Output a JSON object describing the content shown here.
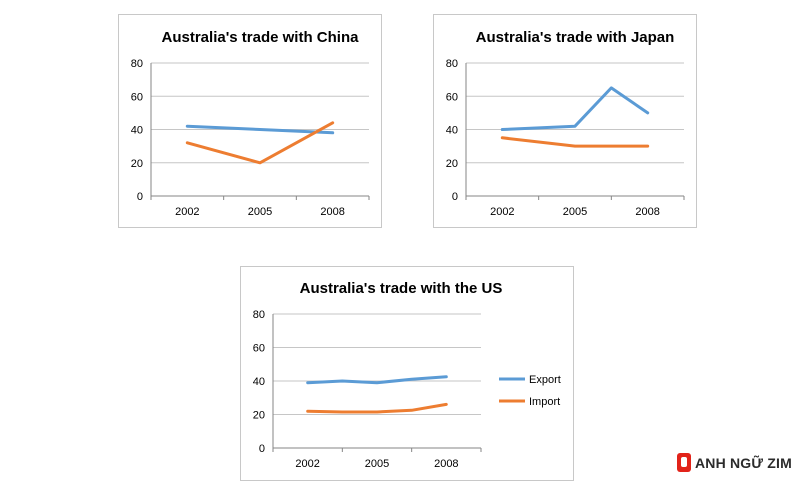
{
  "chart_data": [
    {
      "id": "china",
      "type": "line",
      "title": "Australia's trade with China",
      "categories": [
        "2002",
        "2005",
        "2008"
      ],
      "x": [
        2002,
        2005,
        2008
      ],
      "ylim": [
        0,
        80
      ],
      "yticks": [
        0,
        20,
        40,
        60,
        80
      ],
      "grid": true,
      "legend": null,
      "series": [
        {
          "key": "export",
          "color": "#5b9bd5",
          "points": [
            [
              2002,
              42
            ],
            [
              2005,
              40
            ],
            [
              2008,
              38
            ]
          ]
        },
        {
          "key": "import",
          "color": "#ed7d31",
          "points": [
            [
              2002,
              32
            ],
            [
              2005,
              20
            ],
            [
              2008,
              44
            ]
          ]
        }
      ]
    },
    {
      "id": "japan",
      "type": "line",
      "title": "Australia's trade with Japan",
      "categories": [
        "2002",
        "2005",
        "2008"
      ],
      "x": [
        2002,
        2005,
        2008
      ],
      "ylim": [
        0,
        80
      ],
      "yticks": [
        0,
        20,
        40,
        60,
        80
      ],
      "grid": true,
      "legend": null,
      "series": [
        {
          "key": "export",
          "color": "#5b9bd5",
          "points": [
            [
              2002,
              40
            ],
            [
              2005,
              42
            ],
            [
              2006.5,
              65
            ],
            [
              2008,
              50
            ]
          ]
        },
        {
          "key": "import",
          "color": "#ed7d31",
          "points": [
            [
              2002,
              35
            ],
            [
              2005,
              30
            ],
            [
              2008,
              30
            ]
          ]
        }
      ]
    },
    {
      "id": "us",
      "type": "line",
      "title": "Australia's trade with the US",
      "categories": [
        "2002",
        "2005",
        "2008"
      ],
      "x": [
        2002,
        2005,
        2008
      ],
      "ylim": [
        0,
        80
      ],
      "yticks": [
        0,
        20,
        40,
        60,
        80
      ],
      "grid": true,
      "legend": "right",
      "series": [
        {
          "name": "Export",
          "color": "#5b9bd5",
          "points": [
            [
              2002,
              39
            ],
            [
              2003.5,
              40
            ],
            [
              2005,
              39
            ],
            [
              2006.5,
              41
            ],
            [
              2008,
              42.5
            ]
          ]
        },
        {
          "name": "Import",
          "color": "#ed7d31",
          "points": [
            [
              2002,
              22
            ],
            [
              2003.5,
              21.5
            ],
            [
              2005,
              21.5
            ],
            [
              2006.5,
              22.5
            ],
            [
              2008,
              26
            ]
          ]
        }
      ]
    }
  ],
  "watermark": {
    "text": "ANH NGỮ ZIM",
    "color": "#e2231a"
  }
}
